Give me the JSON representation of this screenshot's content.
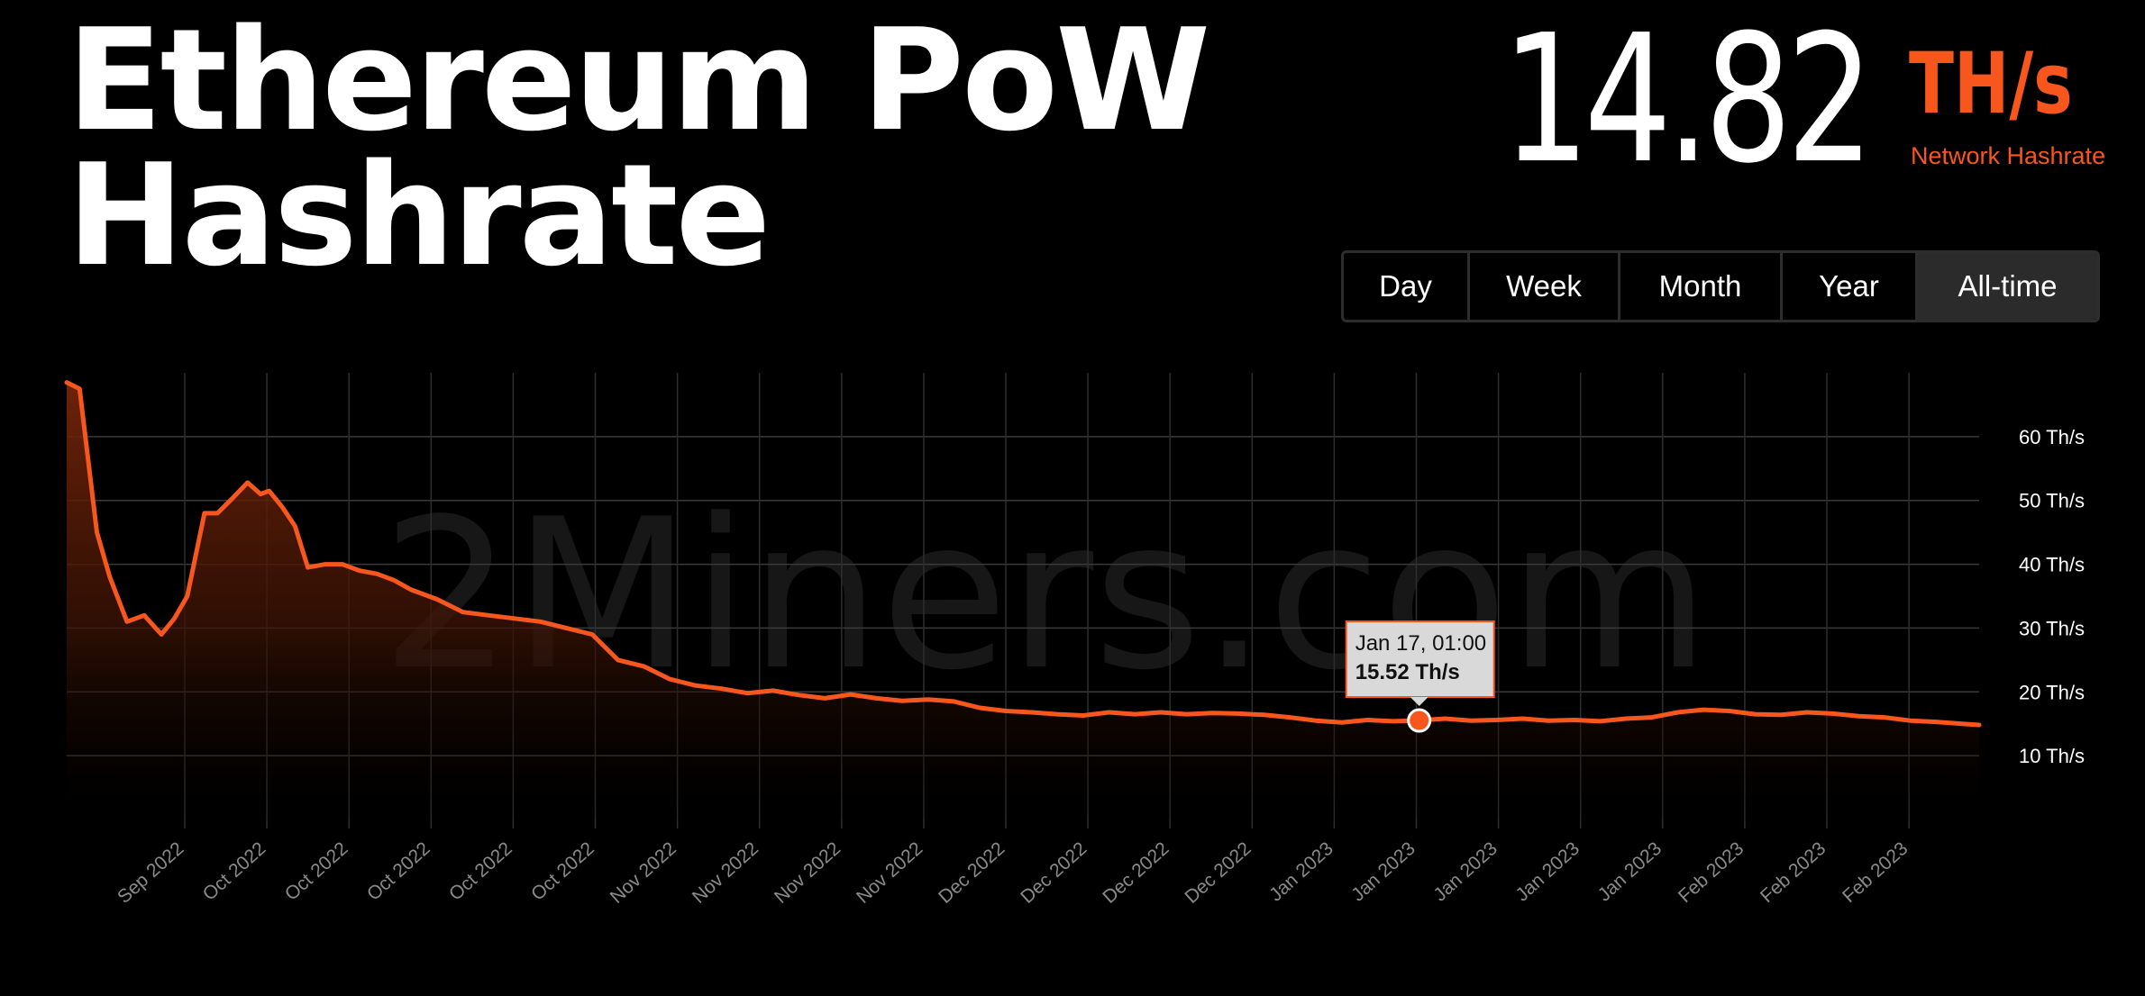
{
  "page": {
    "title_line1": "Ethereum PoW",
    "title_line2": "Hashrate",
    "current_value": "14.82",
    "current_unit": "TH/s",
    "current_caption": "Network Hashrate",
    "accent_color": "#f7571c"
  },
  "range_buttons": [
    {
      "label": "Day",
      "active": false
    },
    {
      "label": "Week",
      "active": false
    },
    {
      "label": "Month",
      "active": false
    },
    {
      "label": "Year",
      "active": false
    },
    {
      "label": "All-time",
      "active": true
    }
  ],
  "chart_data": {
    "type": "area",
    "watermark": "2Miners.com",
    "y_unit": "Th/s",
    "ylim": [
      0,
      70
    ],
    "y_ticks": [
      10,
      20,
      30,
      40,
      50,
      60
    ],
    "y_tick_labels": [
      "10 Th/s",
      "20 Th/s",
      "30 Th/s",
      "40 Th/s",
      "50 Th/s",
      "60 Th/s"
    ],
    "x_tick_labels": [
      "Sep 2022",
      "Oct 2022",
      "Oct 2022",
      "Oct 2022",
      "Oct 2022",
      "Oct 2022",
      "Nov 2022",
      "Nov 2022",
      "Nov 2022",
      "Nov 2022",
      "Dec 2022",
      "Dec 2022",
      "Dec 2022",
      "Dec 2022",
      "Jan 2023",
      "Jan 2023",
      "Jan 2023",
      "Jan 2023",
      "Jan 2023",
      "Feb 2023",
      "Feb 2023",
      "Feb 2023"
    ],
    "grid": true,
    "series": [
      {
        "color": "#f7571c",
        "x": [
          0,
          0.15,
          0.35,
          0.5,
          0.7,
          0.9,
          1.1,
          1.25,
          1.4,
          1.6,
          1.75,
          1.9,
          2.1,
          2.25,
          2.35,
          2.5,
          2.65,
          2.8,
          3.0,
          3.2,
          3.4,
          3.6,
          3.8,
          4.0,
          4.3,
          4.6,
          4.9,
          5.2,
          5.5,
          5.8,
          6.1,
          6.4,
          6.7,
          7.0,
          7.3,
          7.6,
          7.9,
          8.2,
          8.5,
          8.8,
          9.1,
          9.4,
          9.7,
          10.0,
          10.3,
          10.6,
          10.9,
          11.2,
          11.5,
          11.8,
          12.1,
          12.4,
          12.7,
          13.0,
          13.3,
          13.6,
          13.9,
          14.2,
          14.5,
          14.8,
          15.1,
          15.4,
          15.7,
          16.0,
          16.3,
          16.6,
          16.9,
          17.2,
          17.5,
          17.8,
          18.1,
          18.4,
          18.7,
          19.0,
          19.3,
          19.6,
          19.9,
          20.2,
          20.5,
          20.8,
          21.1,
          21.4,
          21.7,
          22.0,
          22.2
        ],
        "y": [
          68.5,
          67.5,
          45.0,
          38.0,
          31.0,
          32.0,
          29.0,
          31.5,
          35.0,
          48.0,
          48.0,
          50.0,
          52.8,
          51.0,
          51.5,
          49.0,
          46.0,
          39.5,
          40.0,
          40.0,
          39.0,
          38.5,
          37.5,
          36.0,
          34.5,
          32.5,
          32.0,
          31.5,
          31.0,
          30.0,
          29.0,
          25.0,
          24.0,
          22.0,
          21.0,
          20.5,
          19.8,
          20.2,
          19.5,
          19.0,
          19.6,
          19.0,
          18.6,
          18.8,
          18.5,
          17.5,
          17.0,
          16.8,
          16.5,
          16.3,
          16.8,
          16.5,
          16.8,
          16.5,
          16.7,
          16.6,
          16.4,
          16.0,
          15.5,
          15.2,
          15.6,
          15.4,
          15.52,
          15.8,
          15.5,
          15.6,
          15.8,
          15.5,
          15.6,
          15.4,
          15.8,
          16.0,
          16.8,
          17.2,
          17.0,
          16.5,
          16.4,
          16.8,
          16.6,
          16.2,
          16.0,
          15.5,
          15.3,
          15.0,
          14.82
        ]
      }
    ],
    "tooltip": {
      "x": 15.7,
      "y": 15.52,
      "date": "Jan 17, 01:00",
      "value": "15.52 Th/s"
    }
  }
}
